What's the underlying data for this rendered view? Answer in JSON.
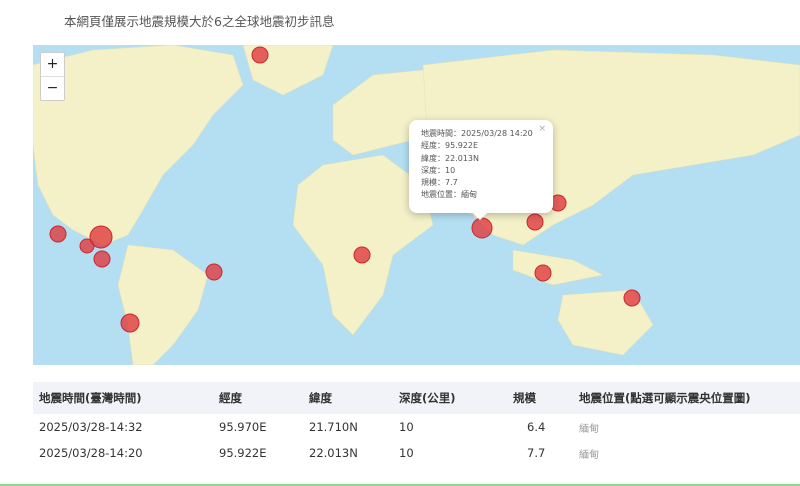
{
  "page": {
    "title": "本網頁僅展示地震規模大於6之全球地震初步訊息"
  },
  "map": {
    "zoom_in": "+",
    "zoom_out": "−",
    "colors": {
      "ocean": "#b4def2",
      "land": "#f4f0c8",
      "marker": "#e0393e"
    },
    "popup": {
      "close": "×",
      "lines": [
        "地震時間：2025/03/28 14:20",
        "經度：95.922E",
        "緯度：22.013N",
        "深度：10",
        "規模：7.7",
        "地震位置：緬甸"
      ]
    }
  },
  "table": {
    "headers": [
      "地震時間(臺灣時間)",
      "經度",
      "緯度",
      "深度(公里)",
      "規模",
      "地震位置(點選可顯示震央位置圖)"
    ],
    "rows": [
      [
        "2025/03/28-14:32",
        "95.970E",
        "21.710N",
        "10",
        "6.4",
        "緬甸"
      ],
      [
        "2025/03/28-14:20",
        "95.922E",
        "22.013N",
        "10",
        "7.7",
        "緬甸"
      ]
    ]
  }
}
